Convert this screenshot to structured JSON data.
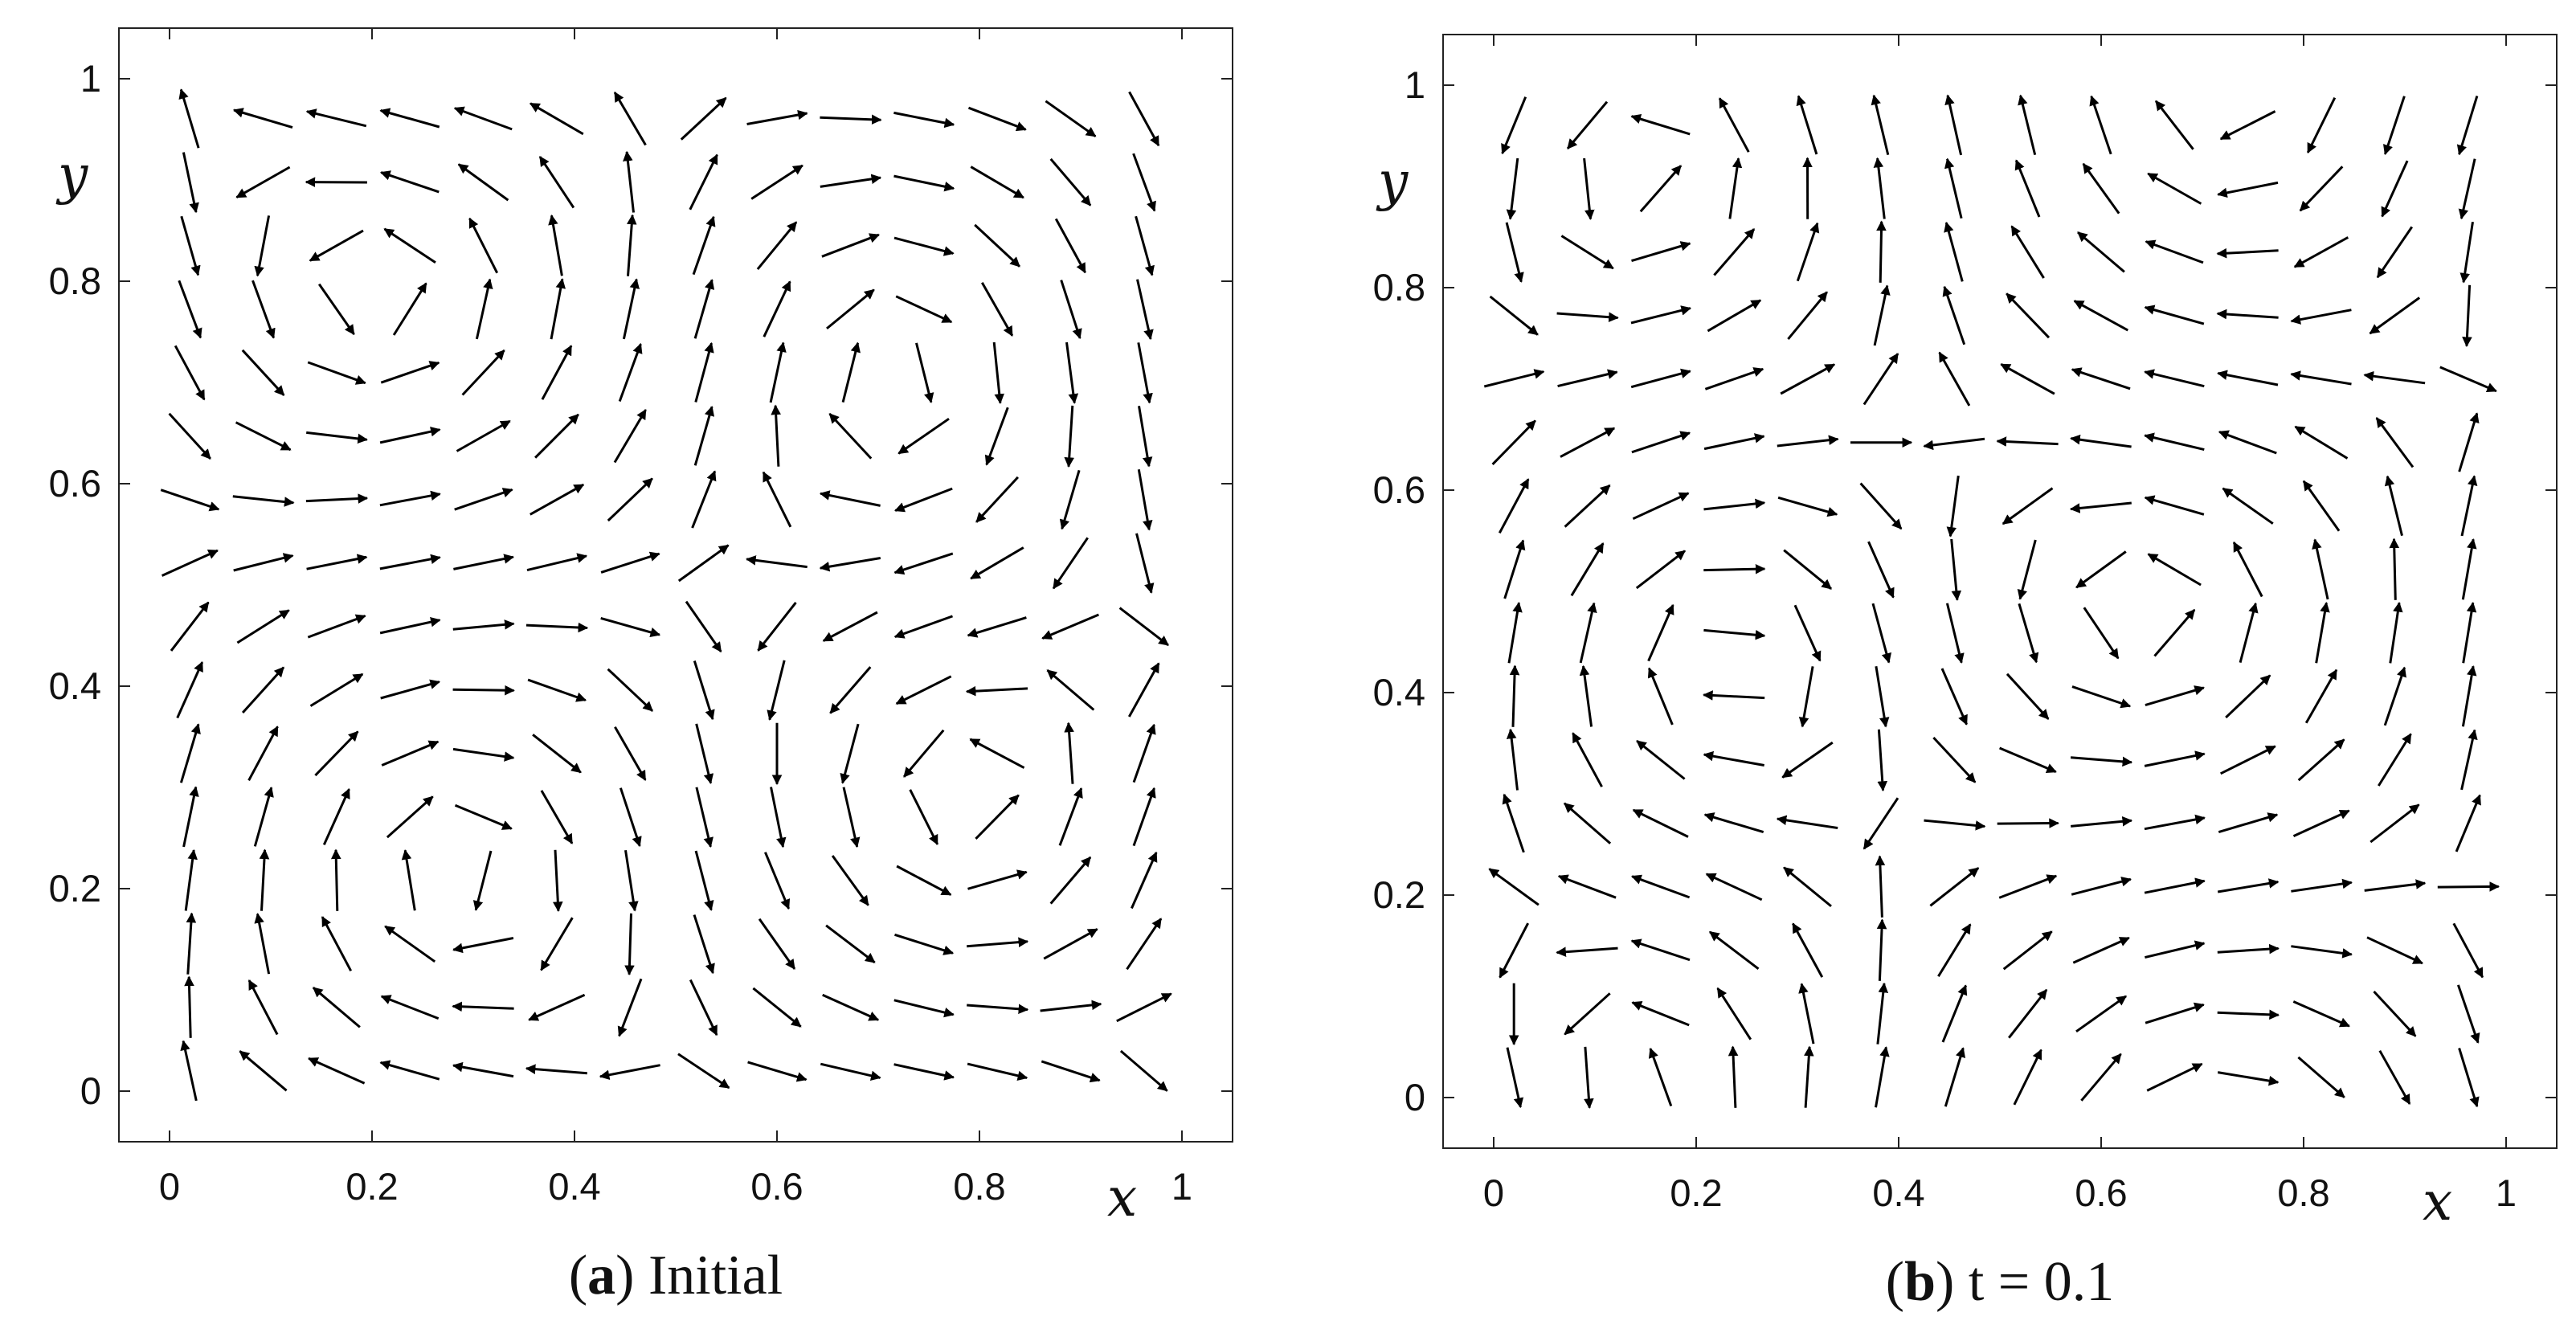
{
  "chart_data": [
    {
      "type": "quiver",
      "panel": "(a)",
      "caption_label": "a",
      "caption_text": "Initial",
      "xlabel": "x",
      "ylabel": "y",
      "xlim": [
        -0.05,
        1.05
      ],
      "ylim": [
        -0.05,
        1.05
      ],
      "xticks": [
        0,
        0.2,
        0.4,
        0.6,
        0.8,
        1
      ],
      "xtick_labels": [
        "0",
        "0.2",
        "0.4",
        "0.6",
        "0.8",
        "1"
      ],
      "yticks": [
        0,
        0.2,
        0.4,
        0.6,
        0.8,
        1
      ],
      "ytick_labels": [
        "0",
        "0.2",
        "0.4",
        "0.6",
        "0.8",
        "1"
      ],
      "grid": false,
      "field": {
        "x0": 0.02,
        "dx": 0.0725,
        "nx": 14,
        "y0": 0.02,
        "dy": 0.0627,
        "ny": 16,
        "phase": 0.0
      }
    },
    {
      "type": "quiver",
      "panel": "(b)",
      "caption_label": "b",
      "caption_text": "t = 0.1",
      "xlabel": "x",
      "ylabel": "y",
      "xlim": [
        -0.05,
        1.05
      ],
      "ylim": [
        -0.05,
        1.05
      ],
      "xticks": [
        0,
        0.2,
        0.4,
        0.6,
        0.8,
        1
      ],
      "xtick_labels": [
        "0",
        "0.2",
        "0.4",
        "0.6",
        "0.8",
        "1"
      ],
      "yticks": [
        0,
        0.2,
        0.4,
        0.6,
        0.8,
        1
      ],
      "ytick_labels": [
        "0",
        "0.2",
        "0.4",
        "0.6",
        "0.8",
        "1"
      ],
      "grid": false,
      "field": {
        "x0": 0.02,
        "dx": 0.0725,
        "nx": 14,
        "y0": 0.02,
        "dy": 0.0627,
        "ny": 16,
        "phase": 1.3
      }
    }
  ]
}
